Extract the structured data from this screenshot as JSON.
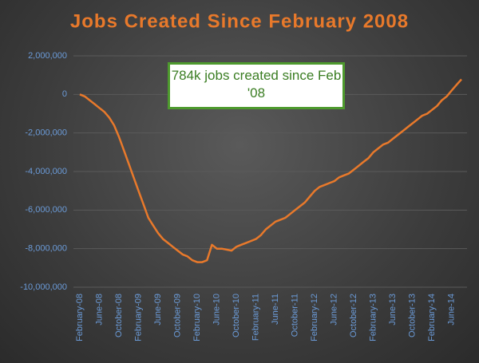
{
  "chart_data": {
    "type": "line",
    "title": "Jobs Created Since February 2008",
    "annotation": "784k jobs created since Feb '08",
    "categories": [
      "February-08",
      null,
      null,
      null,
      "June-08",
      null,
      null,
      null,
      "October-08",
      null,
      null,
      null,
      "February-09",
      null,
      null,
      null,
      "June-09",
      null,
      null,
      null,
      "October-09",
      null,
      null,
      null,
      "February-10",
      null,
      null,
      null,
      "June-10",
      null,
      null,
      null,
      "October-10",
      null,
      null,
      null,
      "February-11",
      null,
      null,
      null,
      "June-11",
      null,
      null,
      null,
      "October-11",
      null,
      null,
      null,
      "February-12",
      null,
      null,
      null,
      "June-12",
      null,
      null,
      null,
      "October-12",
      null,
      null,
      null,
      "February-13",
      null,
      null,
      null,
      "June-13",
      null,
      null,
      null,
      "October-13",
      null,
      null,
      null,
      "February-14",
      null,
      null,
      null,
      "June-14",
      null,
      null
    ],
    "series": [
      {
        "color": "#e8792b",
        "values": [
          0,
          -100000,
          -300000,
          -500000,
          -700000,
          -900000,
          -1200000,
          -1600000,
          -2200000,
          -2900000,
          -3600000,
          -4300000,
          -5000000,
          -5700000,
          -6400000,
          -6800000,
          -7200000,
          -7500000,
          -7700000,
          -7900000,
          -8100000,
          -8300000,
          -8400000,
          -8600000,
          -8700000,
          -8700000,
          -8600000,
          -7800000,
          -8000000,
          -8000000,
          -8050000,
          -8100000,
          -7900000,
          -7800000,
          -7700000,
          -7600000,
          -7500000,
          -7300000,
          -7000000,
          -6800000,
          -6600000,
          -6500000,
          -6400000,
          -6200000,
          -6000000,
          -5800000,
          -5600000,
          -5300000,
          -5000000,
          -4800000,
          -4700000,
          -4600000,
          -4500000,
          -4300000,
          -4200000,
          -4100000,
          -3900000,
          -3700000,
          -3500000,
          -3300000,
          -3000000,
          -2800000,
          -2600000,
          -2500000,
          -2300000,
          -2100000,
          -1900000,
          -1700000,
          -1500000,
          -1300000,
          -1100000,
          -1000000,
          -800000,
          -600000,
          -300000,
          -100000,
          200000,
          500000,
          784000
        ]
      }
    ],
    "ylim": [
      -10000000,
      2000000
    ],
    "yticks": [
      {
        "value": -10000000,
        "label": "-10,000,000"
      },
      {
        "value": -8000000,
        "label": "-8,000,000"
      },
      {
        "value": -6000000,
        "label": "-6,000,000"
      },
      {
        "value": -4000000,
        "label": "-4,000,000"
      },
      {
        "value": -2000000,
        "label": "-2,000,000"
      },
      0,
      {
        "value": 2000000,
        "label": "2,000,000"
      }
    ],
    "grid": true
  }
}
